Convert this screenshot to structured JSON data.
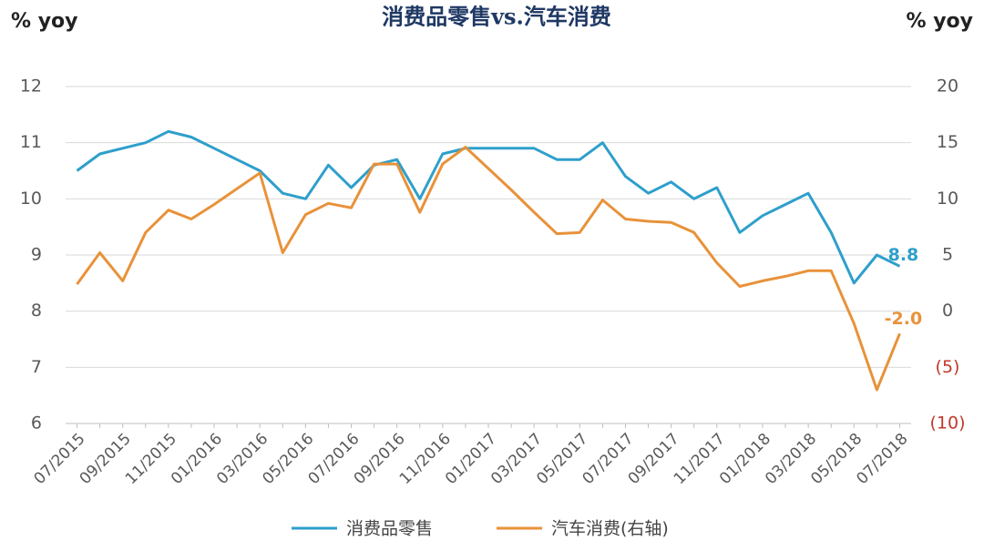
{
  "chart_data": {
    "type": "line",
    "title": "消费品零售vs.汽车消费",
    "y_label": "% yoy",
    "y2_label": "% yoy",
    "categories": [
      "07/2015",
      null,
      "09/2015",
      null,
      "11/2015",
      null,
      "01/2016",
      null,
      "03/2016",
      null,
      "05/2016",
      null,
      "07/2016",
      null,
      "09/2016",
      null,
      "11/2016",
      null,
      "01/2017",
      null,
      "03/2017",
      null,
      "05/2017",
      null,
      "07/2017",
      null,
      "09/2017",
      null,
      "11/2017",
      null,
      "01/2018",
      null,
      "03/2018",
      null,
      "05/2018",
      null,
      "07/2018"
    ],
    "series": [
      {
        "name": "消费品零售",
        "color": "#2e9fcb",
        "values": [
          10.5,
          10.8,
          10.9,
          11.0,
          11.2,
          11.1,
          10.9,
          10.7,
          10.5,
          10.1,
          10.0,
          10.6,
          10.2,
          10.6,
          10.7,
          10.0,
          10.8,
          10.9,
          10.9,
          10.9,
          10.9,
          10.7,
          10.7,
          11.0,
          10.4,
          10.1,
          10.3,
          10.0,
          10.2,
          9.4,
          9.7,
          9.9,
          10.1,
          9.4,
          8.5,
          9.0,
          8.8
        ],
        "value_labels": [
          null,
          null,
          null,
          null,
          null,
          null,
          null,
          null,
          null,
          null,
          null,
          null,
          null,
          null,
          null,
          null,
          null,
          null,
          null,
          null,
          null,
          null,
          null,
          null,
          null,
          null,
          null,
          null,
          null,
          null,
          null,
          null,
          null,
          null,
          null,
          null,
          "8.8"
        ]
      },
      {
        "name": "汽车消费(右轴)",
        "color": "#e8923a",
        "axis": "y2",
        "values": [
          2.4,
          5.2,
          2.7,
          7.0,
          9.0,
          8.2,
          9.5,
          10.9,
          12.3,
          5.2,
          8.6,
          9.6,
          9.2,
          13.1,
          13.1,
          8.8,
          13.1,
          14.6,
          12.7,
          10.8,
          8.8,
          6.9,
          7.0,
          9.9,
          8.2,
          8.0,
          7.9,
          7.0,
          4.3,
          2.2,
          2.7,
          3.1,
          3.6,
          3.6,
          -1.1,
          -7.0,
          -2.0
        ],
        "value_labels": [
          null,
          null,
          null,
          null,
          null,
          null,
          null,
          null,
          null,
          null,
          null,
          null,
          null,
          null,
          null,
          null,
          null,
          null,
          null,
          null,
          null,
          null,
          null,
          null,
          null,
          null,
          null,
          null,
          null,
          null,
          null,
          null,
          null,
          null,
          null,
          null,
          "-2.0"
        ]
      }
    ],
    "ylim": [
      6,
      12
    ],
    "yticks": [
      6,
      7,
      8,
      9,
      10,
      11,
      12
    ],
    "y2lim": [
      -10,
      20
    ],
    "y2ticks": [
      {
        "value": -10,
        "label": "(10)"
      },
      {
        "value": -5,
        "label": "(5)"
      },
      0,
      5,
      10,
      15,
      20
    ],
    "y2_negative_tick_color": "#c0392b",
    "grid": true,
    "legend": "bottom"
  }
}
